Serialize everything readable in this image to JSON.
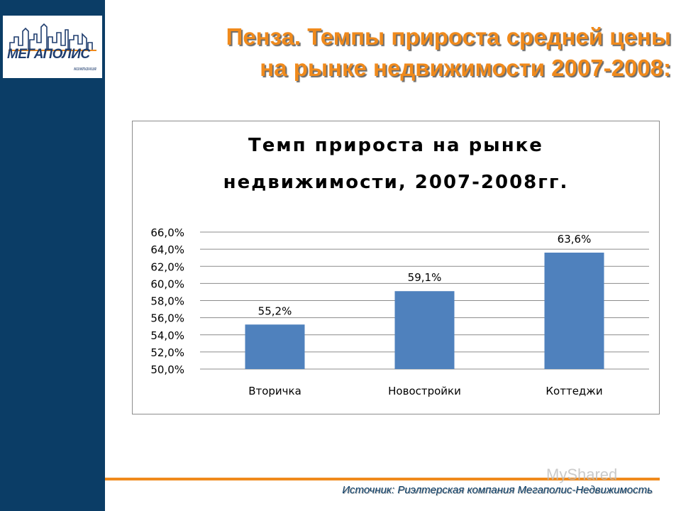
{
  "slide": {
    "title_line1": "Пенза. Темпы прироста средней цены",
    "title_line2": "на рынке недвижимости 2007-2008:",
    "source": "Источник: Риэлтерская компания Мегаполис-Недвижимость",
    "watermark": "MyShared"
  },
  "logo": {
    "word": "МЕГАПОЛИС",
    "sub": "компания",
    "colors": {
      "primary": "#1f3d6e",
      "accent": "#f08a1c"
    }
  },
  "colors": {
    "sidebar": "#0b3d66",
    "title": "#f08a1c",
    "bar": "#4f81bd",
    "grid": "#8c8c8c"
  },
  "chart_data": {
    "type": "bar",
    "title_line1": "Темп прироста на рынке",
    "title_line2": "недвижимости, 2007-2008гг.",
    "categories": [
      "Вторичка",
      "Новостройки",
      "Коттеджи"
    ],
    "values": [
      55.2,
      59.1,
      63.6
    ],
    "value_labels": [
      "55,2%",
      "59,1%",
      "63,6%"
    ],
    "ylim": [
      50,
      66
    ],
    "yticks": [
      50,
      52,
      54,
      56,
      58,
      60,
      62,
      64,
      66
    ],
    "ytick_labels": [
      "50,0%",
      "52,0%",
      "54,0%",
      "56,0%",
      "58,0%",
      "60,0%",
      "62,0%",
      "64,0%",
      "66,0%"
    ],
    "grid": true,
    "legend": "none"
  }
}
